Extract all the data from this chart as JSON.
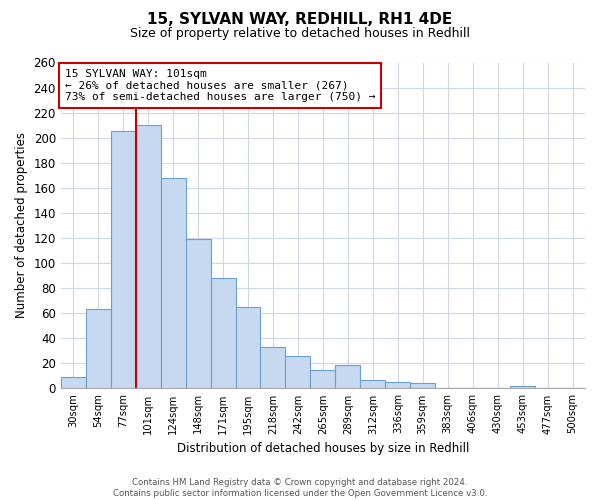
{
  "title": "15, SYLVAN WAY, REDHILL, RH1 4DE",
  "subtitle": "Size of property relative to detached houses in Redhill",
  "xlabel": "Distribution of detached houses by size in Redhill",
  "ylabel": "Number of detached properties",
  "bin_labels": [
    "30sqm",
    "54sqm",
    "77sqm",
    "101sqm",
    "124sqm",
    "148sqm",
    "171sqm",
    "195sqm",
    "218sqm",
    "242sqm",
    "265sqm",
    "289sqm",
    "312sqm",
    "336sqm",
    "359sqm",
    "383sqm",
    "406sqm",
    "430sqm",
    "453sqm",
    "477sqm",
    "500sqm"
  ],
  "bar_heights": [
    9,
    63,
    205,
    210,
    168,
    119,
    88,
    65,
    33,
    26,
    15,
    19,
    7,
    5,
    4,
    0,
    0,
    0,
    2,
    0,
    0
  ],
  "bar_color": "#c6d9f0",
  "bar_edge_color": "#6b9fcc",
  "highlight_bar_index": 3,
  "highlight_line_color": "#cc0000",
  "annotation_line1": "15 SYLVAN WAY: 101sqm",
  "annotation_line2": "← 26% of detached houses are smaller (267)",
  "annotation_line3": "73% of semi-detached houses are larger (750) →",
  "annotation_box_color": "#ffffff",
  "annotation_box_edge": "#cc0000",
  "ylim": [
    0,
    260
  ],
  "yticks": [
    0,
    20,
    40,
    60,
    80,
    100,
    120,
    140,
    160,
    180,
    200,
    220,
    240,
    260
  ],
  "footer_text": "Contains HM Land Registry data © Crown copyright and database right 2024.\nContains public sector information licensed under the Open Government Licence v3.0.",
  "background_color": "#ffffff",
  "grid_color": "#d0d8e8"
}
